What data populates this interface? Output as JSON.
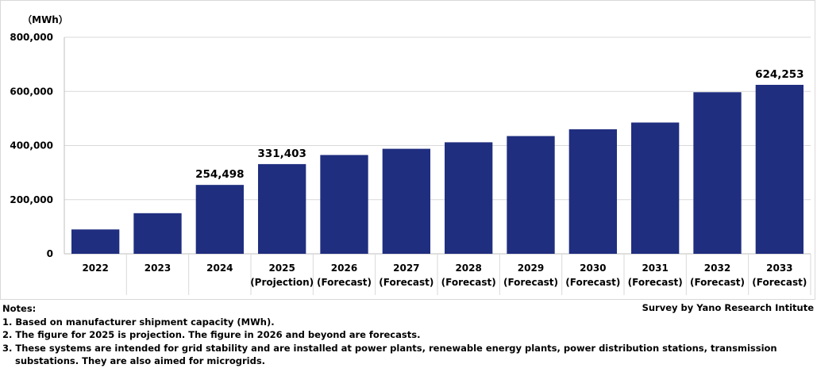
{
  "chart_data": {
    "type": "bar",
    "unit_label": "（MWh）",
    "categories": [
      [
        "2022"
      ],
      [
        "2023"
      ],
      [
        "2024"
      ],
      [
        "2025",
        "(Projection)"
      ],
      [
        "2026",
        "(Forecast)"
      ],
      [
        "2027",
        "(Forecast)"
      ],
      [
        "2028",
        "(Forecast)"
      ],
      [
        "2029",
        "(Forecast)"
      ],
      [
        "2030",
        "(Forecast)"
      ],
      [
        "2031",
        "(Forecast)"
      ],
      [
        "2032",
        "(Forecast)"
      ],
      [
        "2033",
        "(Forecast)"
      ]
    ],
    "values": [
      90000,
      150000,
      254498,
      331403,
      365000,
      388000,
      412000,
      435000,
      460000,
      485000,
      597000,
      624253
    ],
    "data_labels": [
      {
        "index": 2,
        "text": "254,498"
      },
      {
        "index": 3,
        "text": "331,403"
      },
      {
        "index": 11,
        "text": "624,253"
      }
    ],
    "ylim": [
      0,
      800000
    ],
    "yticks": [
      0,
      200000,
      400000,
      600000,
      800000
    ],
    "ytick_labels": [
      "0",
      "200,000",
      "400,000",
      "600,000",
      "800,000"
    ],
    "bar_color": "#1f2e7f",
    "grid": true,
    "grid_color": "#d9d9d9"
  },
  "notes": {
    "heading": "Notes:",
    "lines": [
      "1. Based on manufacturer shipment capacity (MWh).",
      "2. The figure for 2025 is projection. The figure in 2026 and beyond are forecasts.",
      "3. These systems are intended for grid stability and are installed at power plants, renewable energy plants, power distribution stations, transmission",
      "substations. They are also aimed for microgrids."
    ]
  },
  "source": "Survey by Yano Research Intitute"
}
